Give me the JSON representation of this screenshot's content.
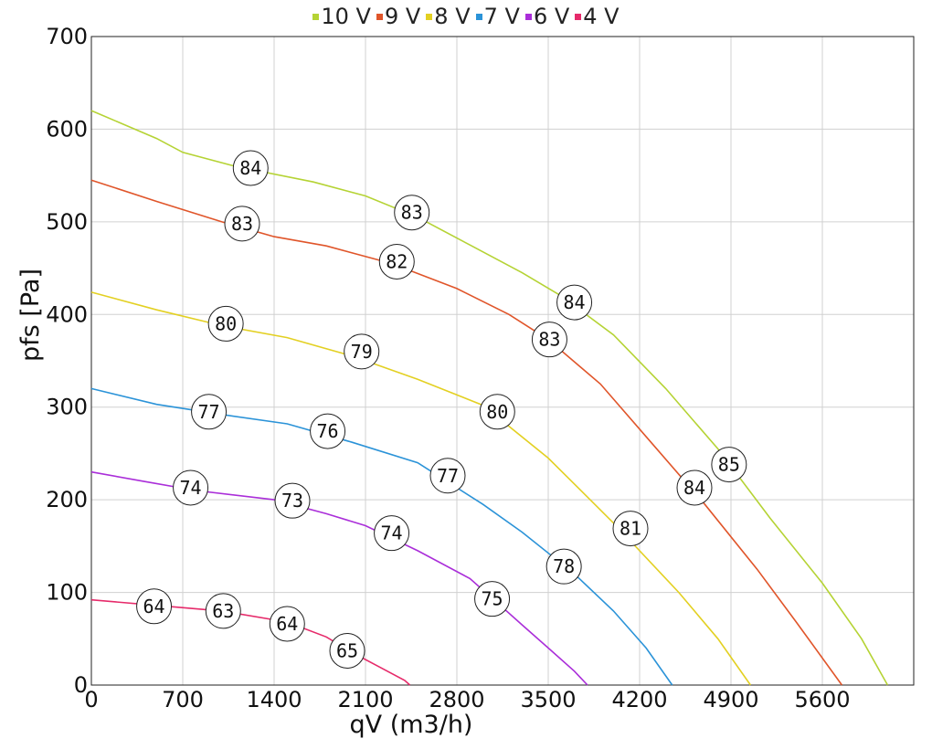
{
  "chart_data": {
    "type": "line",
    "xlabel": "qV (m3/h)",
    "ylabel": "pfs [Pa]",
    "xlim": [
      0,
      6300
    ],
    "ylim": [
      0,
      700
    ],
    "xticks": [
      0,
      700,
      1400,
      2100,
      2800,
      3500,
      4200,
      4900,
      5600
    ],
    "yticks": [
      0,
      100,
      200,
      300,
      400,
      500,
      600,
      700
    ],
    "grid": true,
    "legend_position": "top-center",
    "series": [
      {
        "name": "10 V",
        "color": "#b5d334",
        "points": [
          [
            0,
            620
          ],
          [
            500,
            590
          ],
          [
            700,
            575
          ],
          [
            1100,
            560
          ],
          [
            1700,
            543
          ],
          [
            2100,
            528
          ],
          [
            2500,
            505
          ],
          [
            2900,
            475
          ],
          [
            3300,
            445
          ],
          [
            3600,
            420
          ],
          [
            4000,
            378
          ],
          [
            4400,
            320
          ],
          [
            4800,
            255
          ],
          [
            5200,
            180
          ],
          [
            5600,
            110
          ],
          [
            5900,
            50
          ],
          [
            6100,
            0
          ]
        ],
        "labels": [
          {
            "x": 1220,
            "y": 558,
            "text": "84"
          },
          {
            "x": 2455,
            "y": 510,
            "text": "83"
          },
          {
            "x": 3700,
            "y": 413,
            "text": "84"
          },
          {
            "x": 4885,
            "y": 238,
            "text": "85"
          }
        ]
      },
      {
        "name": "9 V",
        "color": "#e0552a",
        "points": [
          [
            0,
            545
          ],
          [
            500,
            522
          ],
          [
            1000,
            500
          ],
          [
            1400,
            484
          ],
          [
            1800,
            474
          ],
          [
            2300,
            455
          ],
          [
            2800,
            428
          ],
          [
            3200,
            400
          ],
          [
            3500,
            373
          ],
          [
            3900,
            325
          ],
          [
            4300,
            260
          ],
          [
            4700,
            195
          ],
          [
            5100,
            125
          ],
          [
            5400,
            68
          ],
          [
            5750,
            0
          ]
        ],
        "labels": [
          {
            "x": 1155,
            "y": 498,
            "text": "83"
          },
          {
            "x": 2340,
            "y": 457,
            "text": "82"
          },
          {
            "x": 3510,
            "y": 373,
            "text": "83"
          },
          {
            "x": 4620,
            "y": 213,
            "text": "84"
          }
        ]
      },
      {
        "name": "8 V",
        "color": "#e3d022",
        "points": [
          [
            0,
            424
          ],
          [
            500,
            405
          ],
          [
            1000,
            388
          ],
          [
            1500,
            375
          ],
          [
            2000,
            355
          ],
          [
            2500,
            330
          ],
          [
            3000,
            302
          ],
          [
            3500,
            245
          ],
          [
            4000,
            175
          ],
          [
            4500,
            100
          ],
          [
            4800,
            50
          ],
          [
            5050,
            0
          ]
        ],
        "labels": [
          {
            "x": 1030,
            "y": 390,
            "text": "80"
          },
          {
            "x": 2070,
            "y": 360,
            "text": "79"
          },
          {
            "x": 3110,
            "y": 295,
            "text": "80"
          },
          {
            "x": 4130,
            "y": 169,
            "text": "81"
          }
        ]
      },
      {
        "name": "7 V",
        "color": "#2b93d8",
        "points": [
          [
            0,
            320
          ],
          [
            500,
            303
          ],
          [
            1000,
            292
          ],
          [
            1500,
            282
          ],
          [
            2000,
            262
          ],
          [
            2500,
            240
          ],
          [
            3000,
            195
          ],
          [
            3300,
            165
          ],
          [
            3700,
            120
          ],
          [
            4000,
            80
          ],
          [
            4250,
            40
          ],
          [
            4450,
            0
          ]
        ],
        "labels": [
          {
            "x": 900,
            "y": 295,
            "text": "77"
          },
          {
            "x": 1810,
            "y": 274,
            "text": "76"
          },
          {
            "x": 2730,
            "y": 226,
            "text": "77"
          },
          {
            "x": 3620,
            "y": 128,
            "text": "78"
          }
        ]
      },
      {
        "name": "6 V",
        "color": "#aa2ed9",
        "points": [
          [
            0,
            230
          ],
          [
            400,
            220
          ],
          [
            800,
            210
          ],
          [
            1400,
            200
          ],
          [
            1800,
            185
          ],
          [
            2100,
            172
          ],
          [
            2500,
            145
          ],
          [
            2900,
            115
          ],
          [
            3100,
            90
          ],
          [
            3300,
            65
          ],
          [
            3500,
            40
          ],
          [
            3700,
            15
          ],
          [
            3800,
            0
          ]
        ],
        "labels": [
          {
            "x": 760,
            "y": 213,
            "text": "74"
          },
          {
            "x": 1540,
            "y": 199,
            "text": "73"
          },
          {
            "x": 2300,
            "y": 164,
            "text": "74"
          },
          {
            "x": 3070,
            "y": 93,
            "text": "75"
          }
        ]
      },
      {
        "name": "4 V",
        "color": "#e62a6a",
        "points": [
          [
            0,
            92
          ],
          [
            500,
            86
          ],
          [
            1000,
            80
          ],
          [
            1500,
            68
          ],
          [
            1800,
            52
          ],
          [
            2000,
            35
          ],
          [
            2200,
            20
          ],
          [
            2400,
            5
          ],
          [
            2440,
            0
          ]
        ],
        "labels": [
          {
            "x": 480,
            "y": 85,
            "text": "64"
          },
          {
            "x": 1010,
            "y": 80,
            "text": "63"
          },
          {
            "x": 1500,
            "y": 66,
            "text": "64"
          },
          {
            "x": 1960,
            "y": 37,
            "text": "65"
          }
        ]
      }
    ]
  }
}
